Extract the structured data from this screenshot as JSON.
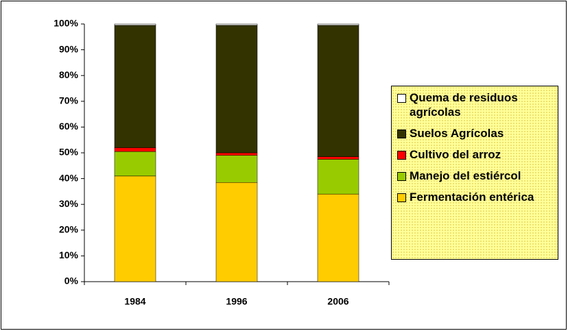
{
  "chart_data": {
    "type": "stacked_bar",
    "categories": [
      "1984",
      "1996",
      "2006"
    ],
    "series": [
      {
        "name": "Fermentación entérica",
        "color": "#ffcc00",
        "values": [
          41,
          38.5,
          34
        ]
      },
      {
        "name": "Manejo del estiércol",
        "color": "#99cc00",
        "values": [
          9.5,
          10.5,
          13.5
        ]
      },
      {
        "name": "Cultivo del arroz",
        "color": "#ff0000",
        "values": [
          1.5,
          1,
          1
        ]
      },
      {
        "name": "Suelos Agrícolas",
        "color": "#333300",
        "values": [
          47.5,
          49.5,
          51
        ]
      },
      {
        "name": "Quema de residuos agrícolas",
        "color": "#ffffff",
        "values": [
          0.5,
          0.5,
          0.5
        ]
      }
    ],
    "ylim": [
      0,
      100
    ],
    "yticks": [
      {
        "value": 0,
        "label": "0%"
      },
      {
        "value": 10,
        "label": "10%"
      },
      {
        "value": 20,
        "label": "20%"
      },
      {
        "value": 30,
        "label": "30%"
      },
      {
        "value": 40,
        "label": "40%"
      },
      {
        "value": 50,
        "label": "50%"
      },
      {
        "value": 60,
        "label": "60%"
      },
      {
        "value": 70,
        "label": "70%"
      },
      {
        "value": 80,
        "label": "80%"
      },
      {
        "value": 90,
        "label": "90%"
      },
      {
        "value": 100,
        "label": "100%"
      }
    ],
    "legend": "right"
  }
}
